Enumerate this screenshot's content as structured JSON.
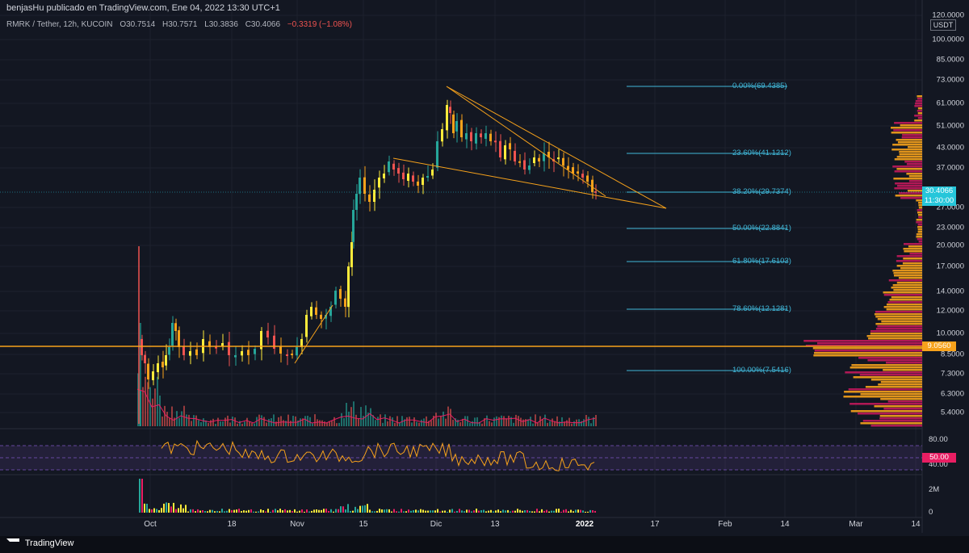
{
  "header": {
    "publisher": "benjasHu publicado en TradingView.com, Ene 04, 2022 13:30 UTC+1"
  },
  "symbol": {
    "name": "RMRK / Tether, 12h, KUCOIN",
    "open": "O30.7514",
    "high": "H30.7571",
    "low": "L30.3836",
    "close": "C30.4066",
    "change": "−0.3319 (−1.08%)"
  },
  "price_axis": {
    "currency": "USDT",
    "ticks": [
      "120.0000",
      "100.0000",
      "85.0000",
      "73.0000",
      "61.0000",
      "51.0000",
      "43.0000",
      "37.0000",
      "27.0000",
      "23.0000",
      "20.0000",
      "17.0000",
      "14.0000",
      "12.0000",
      "10.0000",
      "8.5000",
      "7.3000",
      "6.3000",
      "5.4000"
    ],
    "last_price": "30.4066",
    "countdown": "11:30:00",
    "hline_price": "9.0560"
  },
  "fib_levels": [
    {
      "label": "0.00%(69.4385)"
    },
    {
      "label": "23.60%(41.1212)"
    },
    {
      "label": "38.20%(29.7374)"
    },
    {
      "label": "50.00%(22.8841)"
    },
    {
      "label": "61.80%(17.6103)"
    },
    {
      "label": "78.60%(12.1281)"
    },
    {
      "label": "100.00%(7.5416)"
    }
  ],
  "rsi": {
    "ticks": [
      "80.00",
      "40.00"
    ],
    "mid_label": "50.00"
  },
  "volume_pane": {
    "ticks": [
      "2M",
      "0"
    ]
  },
  "time_axis": {
    "ticks": [
      {
        "label": "Oct",
        "bold": false
      },
      {
        "label": "18",
        "bold": false
      },
      {
        "label": "Nov",
        "bold": false
      },
      {
        "label": "15",
        "bold": false
      },
      {
        "label": "Dic",
        "bold": false
      },
      {
        "label": "13",
        "bold": false
      },
      {
        "label": "2022",
        "bold": true
      },
      {
        "label": "17",
        "bold": false
      },
      {
        "label": "Feb",
        "bold": false
      },
      {
        "label": "14",
        "bold": false
      },
      {
        "label": "Mar",
        "bold": false
      },
      {
        "label": "14",
        "bold": false
      }
    ]
  },
  "footer": {
    "brand": "TradingView"
  },
  "colors": {
    "background": "#131722",
    "fib": "#40b7d8",
    "trendline": "#f7a21b",
    "hline": "#f7a21b",
    "rsi_line": "#f7a21b",
    "rsi_band": "#7e57c2",
    "volume_profile_up": "#f7a21b",
    "volume_profile_down": "#c2185b",
    "last_price_bg": "#26c6da",
    "rsi_mid_bg": "#e91e63"
  }
}
